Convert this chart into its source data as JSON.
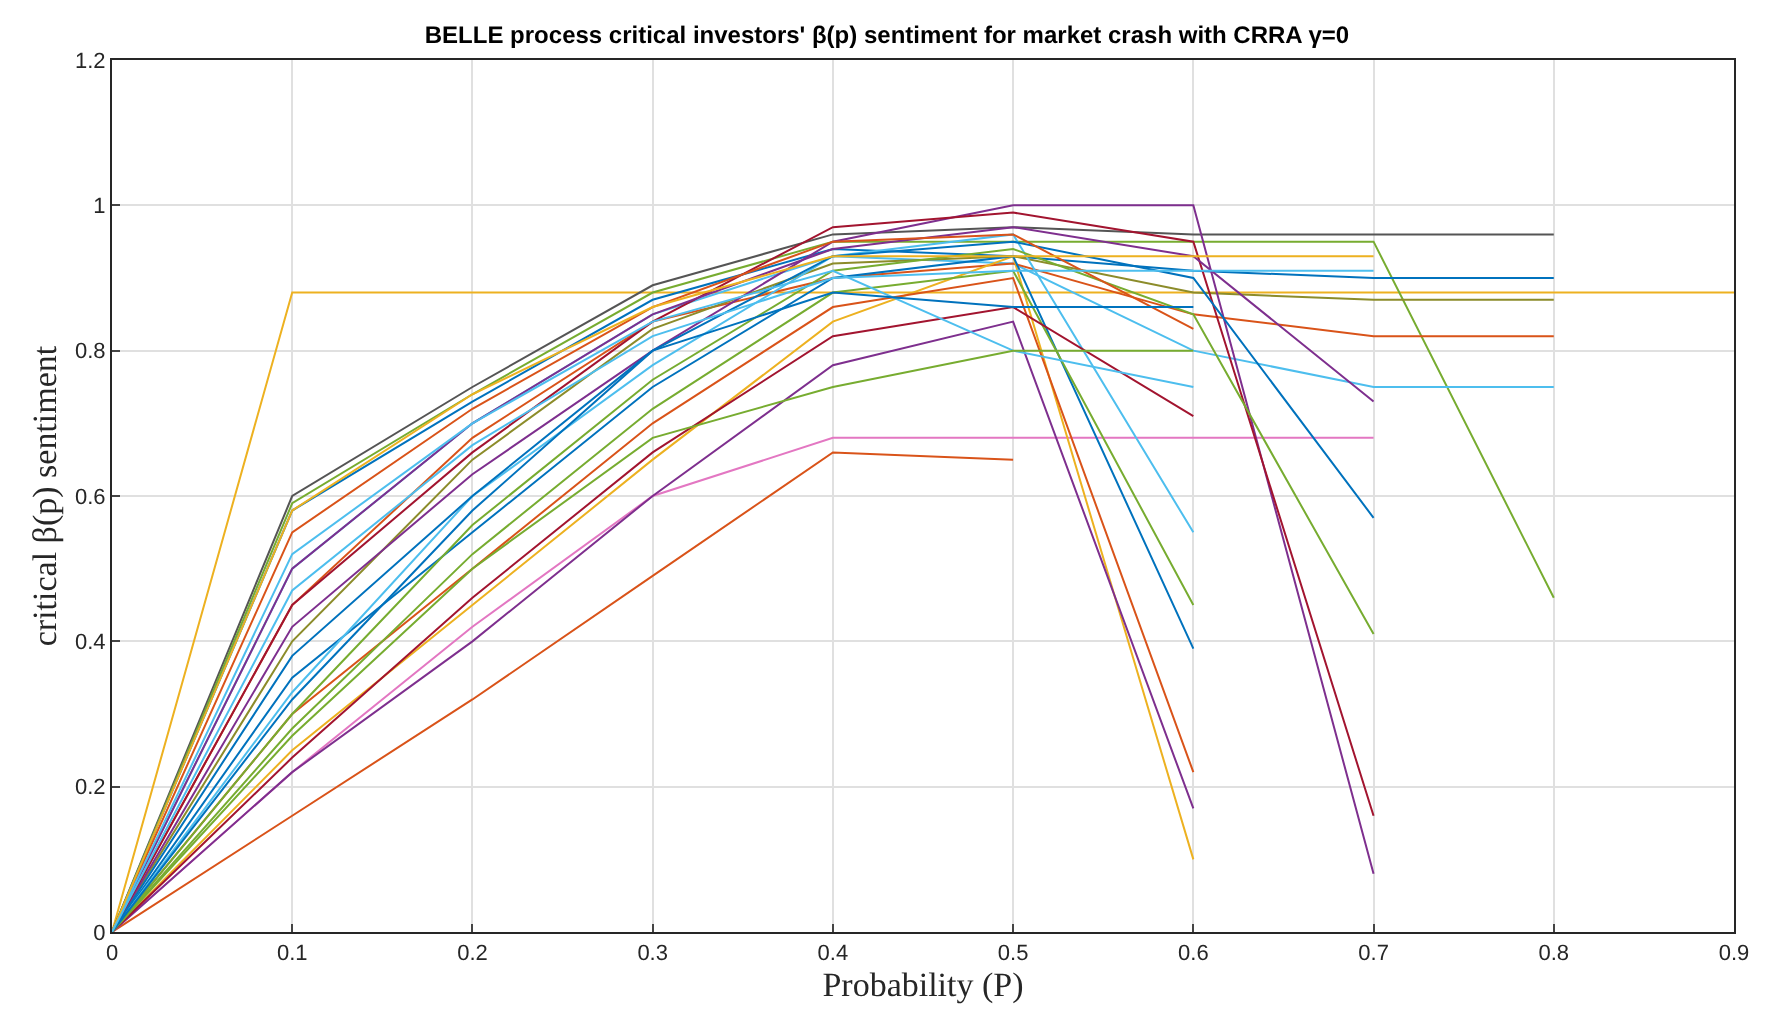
{
  "chart_data": {
    "type": "line",
    "title": "BELLE process critical investors' β(p) sentiment for market crash with CRRA γ=0",
    "xlabel": "Probability (P)",
    "ylabel": "critical β(p) sentiment",
    "x": [
      0,
      0.1,
      0.2,
      0.3,
      0.4,
      0.5,
      0.6,
      0.7,
      0.8,
      0.9
    ],
    "xlim": [
      0,
      0.9
    ],
    "xticks": [
      0,
      0.1,
      0.2,
      0.3,
      0.4,
      0.5,
      0.6,
      0.7,
      0.8,
      0.9
    ],
    "ylim": [
      0,
      1.2
    ],
    "yticks": [
      0,
      0.2,
      0.4,
      0.6,
      0.8,
      1,
      1.2
    ],
    "grid": true,
    "marker": "none",
    "line_style": "solid",
    "series": [
      {
        "color": "#edb120",
        "values": [
          0,
          0.88,
          0.88,
          0.88,
          0.88,
          0.88,
          0.88,
          0.88,
          0.88,
          0.88
        ]
      },
      {
        "color": "#d95319",
        "values": [
          0,
          0.16,
          0.32,
          0.49,
          0.66,
          0.65,
          null,
          null,
          null,
          null
        ]
      },
      {
        "color": "#555555",
        "values": [
          0,
          0.6,
          0.75,
          0.89,
          0.96,
          0.97,
          0.96,
          0.96,
          0.96,
          null
        ]
      },
      {
        "color": "#77ac30",
        "values": [
          0,
          0.59,
          0.74,
          0.88,
          0.95,
          0.95,
          0.95,
          0.95,
          0.46,
          null
        ]
      },
      {
        "color": "#0072bd",
        "values": [
          0,
          0.58,
          0.73,
          0.87,
          0.94,
          0.93,
          0.91,
          0.9,
          0.9,
          null
        ]
      },
      {
        "color": "#4dbeee",
        "values": [
          0,
          0.5,
          0.7,
          0.85,
          0.93,
          0.92,
          0.8,
          0.75,
          0.75,
          null
        ]
      },
      {
        "color": "#d95319",
        "values": [
          0,
          0.45,
          0.68,
          0.84,
          0.9,
          0.92,
          0.85,
          0.82,
          0.82,
          null
        ]
      },
      {
        "color": "#8c8c2a",
        "values": [
          0,
          0.4,
          0.65,
          0.83,
          0.92,
          0.93,
          0.88,
          0.87,
          0.87,
          null
        ]
      },
      {
        "color": "#e377c2",
        "values": [
          0,
          0.22,
          0.42,
          0.6,
          0.68,
          0.68,
          0.68,
          0.68,
          null,
          null
        ]
      },
      {
        "color": "#edb120",
        "values": [
          0,
          0.25,
          0.45,
          0.65,
          0.84,
          0.93,
          0.1,
          null,
          null,
          null
        ]
      },
      {
        "color": "#7e2f8e",
        "values": [
          0,
          0.22,
          0.4,
          0.6,
          0.78,
          0.84,
          0.17,
          null,
          null,
          null
        ]
      },
      {
        "color": "#d95319",
        "values": [
          0,
          0.3,
          0.5,
          0.7,
          0.86,
          0.9,
          0.22,
          null,
          null,
          null
        ]
      },
      {
        "color": "#0072bd",
        "values": [
          0,
          0.35,
          0.55,
          0.75,
          0.9,
          0.93,
          0.39,
          null,
          null,
          null
        ]
      },
      {
        "color": "#77ac30",
        "values": [
          0,
          0.28,
          0.52,
          0.72,
          0.88,
          0.91,
          0.45,
          null,
          null,
          null
        ]
      },
      {
        "color": "#4dbeee",
        "values": [
          0,
          0.33,
          0.6,
          0.78,
          0.93,
          0.96,
          0.55,
          null,
          null,
          null
        ]
      },
      {
        "color": "#7e2f8e",
        "values": [
          0,
          0.42,
          0.63,
          0.8,
          0.95,
          1,
          1,
          0.08,
          null,
          null
        ]
      },
      {
        "color": "#a2142f",
        "values": [
          0,
          0.45,
          0.66,
          0.84,
          0.97,
          0.99,
          0.95,
          0.16,
          null,
          null
        ]
      },
      {
        "color": "#77ac30",
        "values": [
          0,
          0.3,
          0.56,
          0.76,
          0.91,
          0.94,
          0.85,
          0.41,
          null,
          null
        ]
      },
      {
        "color": "#0072bd",
        "values": [
          0,
          0.38,
          0.6,
          0.8,
          0.93,
          0.95,
          0.9,
          0.57,
          null,
          null
        ]
      },
      {
        "color": "#7e2f8e",
        "values": [
          0,
          0.5,
          0.7,
          0.85,
          0.94,
          0.97,
          0.93,
          0.73,
          null,
          null
        ]
      },
      {
        "color": "#a2142f",
        "values": [
          0,
          0.24,
          0.46,
          0.66,
          0.82,
          0.86,
          0.71,
          null,
          null,
          null
        ]
      },
      {
        "color": "#d95319",
        "values": [
          0,
          0.55,
          0.72,
          0.86,
          0.95,
          0.96,
          0.83,
          null,
          null,
          null
        ]
      },
      {
        "color": "#4dbeee",
        "values": [
          0,
          0.52,
          0.7,
          0.84,
          0.91,
          0.8,
          0.75,
          null,
          null,
          null
        ]
      },
      {
        "color": "#77ac30",
        "values": [
          0,
          0.27,
          0.5,
          0.68,
          0.75,
          0.8,
          0.8,
          null,
          null,
          null
        ]
      },
      {
        "color": "#0072bd",
        "values": [
          0,
          0.32,
          0.58,
          0.8,
          0.88,
          0.86,
          0.86,
          null,
          null,
          null
        ]
      },
      {
        "color": "#edb120",
        "values": [
          0,
          0.58,
          0.74,
          0.86,
          0.93,
          0.93,
          0.93,
          0.93,
          null,
          null
        ]
      },
      {
        "color": "#4dbeee",
        "values": [
          0,
          0.47,
          0.67,
          0.82,
          0.9,
          0.91,
          0.91,
          0.91,
          null,
          null
        ]
      }
    ]
  }
}
